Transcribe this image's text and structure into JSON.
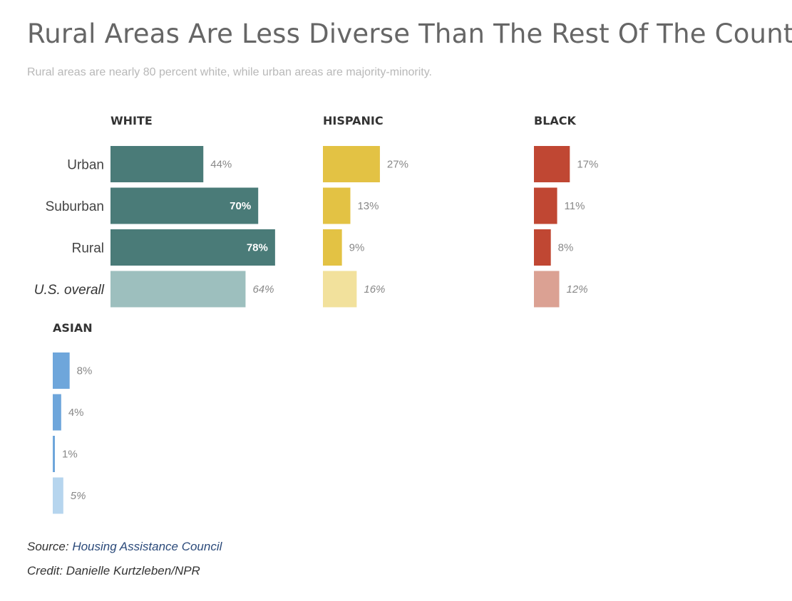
{
  "title": "Rural Areas Are Less Diverse Than The Rest Of The Country",
  "subtitle": "Rural areas are nearly 80 percent white, while urban areas are majority-minority.",
  "source_label": "Source: ",
  "source_name": "Housing Assistance Council",
  "credit": "Credit: Danielle Kurtzleben/NPR",
  "chart_data": {
    "type": "bar",
    "orientation": "horizontal",
    "categories": [
      "Urban",
      "Suburban",
      "Rural",
      "U.S. overall"
    ],
    "value_unit": "%",
    "series": [
      {
        "name": "WHITE",
        "values": [
          44,
          70,
          78,
          64
        ],
        "color": "#4a7b78",
        "overall_color": "#9dbfbe"
      },
      {
        "name": "HISPANIC",
        "values": [
          27,
          13,
          9,
          16
        ],
        "color": "#e3c244",
        "overall_color": "#f2e19c"
      },
      {
        "name": "BLACK",
        "values": [
          17,
          11,
          8,
          12
        ],
        "color": "#c04733",
        "overall_color": "#dba193"
      },
      {
        "name": "ASIAN",
        "values": [
          8,
          4,
          1,
          5
        ],
        "color": "#6ea6db",
        "overall_color": "#b6d5ee"
      }
    ]
  }
}
